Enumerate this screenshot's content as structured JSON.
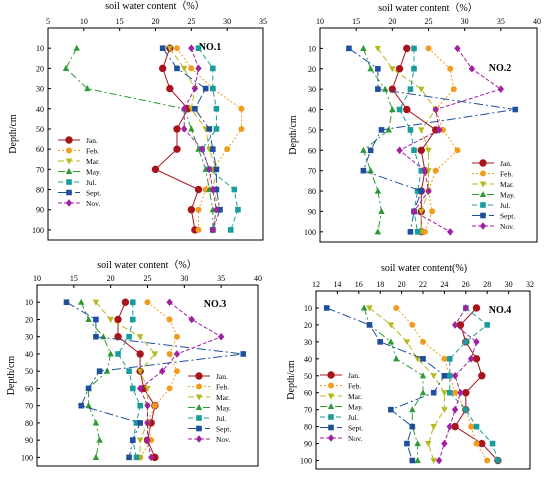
{
  "chart_data": [
    {
      "panel": "NO.1",
      "type": "line",
      "xlabel": "soil water content（%）",
      "ylabel": "Depth/cm",
      "xlim": [
        5,
        35
      ],
      "ylim": [
        0,
        105
      ],
      "x_ticks": [
        5,
        10,
        15,
        20,
        25,
        30,
        35
      ],
      "y_ticks": [
        10,
        20,
        30,
        40,
        50,
        60,
        70,
        80,
        90,
        100
      ],
      "legend_position": "bottom-left",
      "depths": [
        10,
        20,
        30,
        40,
        50,
        60,
        70,
        80,
        90,
        100
      ],
      "series": [
        {
          "name": "Jan.",
          "values": [
            22,
            21,
            22,
            24.5,
            23,
            23,
            20,
            26,
            25,
            25.5
          ]
        },
        {
          "name": "Feb.",
          "values": [
            23,
            25,
            28,
            32,
            32,
            30,
            28,
            27,
            26,
            26
          ]
        },
        {
          "name": "Mar.",
          "values": [
            22,
            24,
            25.5,
            25,
            27,
            27.5,
            28.5,
            28,
            29,
            28
          ]
        },
        {
          "name": "May.",
          "values": [
            9,
            7.5,
            10.5,
            24,
            25,
            26,
            27,
            27.5,
            28,
            28
          ]
        },
        {
          "name": "Jul.",
          "values": [
            26,
            28,
            28,
            28.5,
            28.5,
            26.5,
            27.5,
            31,
            31.5,
            30.5
          ]
        },
        {
          "name": "Sept.",
          "values": [
            21,
            23,
            27,
            25.5,
            27.5,
            28,
            28.5,
            28.5,
            29,
            28
          ]
        },
        {
          "name": "Nov.",
          "values": [
            25,
            26,
            25.5,
            24,
            24,
            26.5,
            27.5,
            28,
            28.5,
            28
          ]
        }
      ],
      "colors": {
        "Jan.": "#a8141b",
        "Feb.": "#f39b1f",
        "Mar.": "#b6b81e",
        "May.": "#2e9a35",
        "Jul.": "#1a9c9c",
        "Sept.": "#1f4f9a",
        "Nov.": "#a0229e"
      }
    },
    {
      "panel": "NO.2",
      "type": "line",
      "xlabel": "soil water content（%）",
      "ylabel": "Depth/cm",
      "xlim": [
        10,
        40
      ],
      "ylim": [
        0,
        105
      ],
      "x_ticks": [
        10,
        15,
        20,
        25,
        30,
        35,
        40
      ],
      "y_ticks": [
        10,
        20,
        30,
        40,
        50,
        60,
        70,
        80,
        90,
        100
      ],
      "legend_position": "bottom-right",
      "depths": [
        10,
        20,
        30,
        40,
        50,
        60,
        70,
        80,
        90,
        100
      ],
      "series": [
        {
          "name": "Jan.",
          "values": [
            22,
            21,
            20,
            22,
            26,
            24,
            24.5,
            24,
            24,
            24
          ]
        },
        {
          "name": "Feb.",
          "values": [
            25,
            28,
            28.5,
            26,
            27,
            29,
            26,
            25,
            25.5,
            24.5
          ]
        },
        {
          "name": "Mar.",
          "values": [
            18,
            20,
            24,
            26,
            24,
            25,
            25,
            25,
            24,
            24
          ]
        },
        {
          "name": "May.",
          "values": [
            16,
            17,
            19,
            20,
            19.5,
            16,
            17,
            18,
            18.5,
            18
          ]
        },
        {
          "name": "Jul.",
          "values": [
            23,
            23,
            22.5,
            21,
            22.5,
            23,
            24,
            23.5,
            23,
            23.5
          ]
        },
        {
          "name": "Sept.",
          "values": [
            14,
            18,
            18,
            37,
            18.5,
            17,
            16,
            24,
            23,
            22.5
          ]
        },
        {
          "name": "Nov.",
          "values": [
            29,
            31,
            35,
            26,
            26.5,
            21,
            24.5,
            25,
            23,
            28
          ]
        }
      ],
      "colors": {
        "Jan.": "#a8141b",
        "Feb.": "#f39b1f",
        "Mar.": "#b6b81e",
        "May.": "#2e9a35",
        "Jul.": "#1a9c9c",
        "Sept.": "#1f4f9a",
        "Nov.": "#a0229e"
      }
    },
    {
      "panel": "NO.3",
      "type": "line",
      "xlabel": "soil water content（%）",
      "ylabel": "Depth/cm",
      "xlim": [
        10,
        40
      ],
      "ylim": [
        0,
        105
      ],
      "x_ticks": [
        10,
        15,
        20,
        25,
        30,
        35,
        40
      ],
      "y_ticks": [
        10,
        20,
        30,
        40,
        50,
        60,
        70,
        80,
        90,
        100
      ],
      "legend_position": "bottom-right",
      "depths": [
        10,
        20,
        30,
        40,
        50,
        60,
        70,
        80,
        90,
        100
      ],
      "series": [
        {
          "name": "Jan.",
          "values": [
            22,
            21,
            21,
            24,
            24,
            24.5,
            26,
            25.5,
            25,
            26
          ]
        },
        {
          "name": "Feb.",
          "values": [
            25,
            28,
            29,
            28,
            29,
            28,
            26,
            25,
            25.5,
            24
          ]
        },
        {
          "name": "Mar.",
          "values": [
            18,
            20,
            24,
            26,
            24,
            25,
            25,
            25,
            24,
            24
          ]
        },
        {
          "name": "May.",
          "values": [
            16,
            17,
            19,
            20,
            19.5,
            17,
            17,
            18,
            18.5,
            18
          ]
        },
        {
          "name": "Jul.",
          "values": [
            23,
            23,
            22.5,
            21,
            22.5,
            23,
            24,
            23.5,
            23,
            23.5
          ]
        },
        {
          "name": "Sept.",
          "values": [
            14,
            18,
            18,
            38,
            18.5,
            17,
            16,
            24,
            23,
            22.5
          ]
        },
        {
          "name": "Nov.",
          "values": [
            28,
            31,
            35,
            29,
            27,
            24,
            25,
            25,
            25,
            25.5
          ]
        }
      ],
      "colors": {
        "Jan.": "#a8141b",
        "Feb.": "#f39b1f",
        "Mar.": "#b6b81e",
        "May.": "#2e9a35",
        "Jul.": "#1a9c9c",
        "Sept.": "#1f4f9a",
        "Nov.": "#a0229e"
      }
    },
    {
      "panel": "NO.4",
      "type": "line",
      "xlabel": "soil water content(%)",
      "ylabel": "Depth/cm",
      "xlim": [
        12,
        32
      ],
      "ylim": [
        0,
        105
      ],
      "x_ticks": [
        12,
        14,
        16,
        18,
        20,
        22,
        24,
        26,
        28,
        30,
        32
      ],
      "y_ticks": [
        10,
        20,
        30,
        40,
        50,
        60,
        70,
        80,
        90,
        100
      ],
      "legend_position": "bottom-left",
      "depths": [
        10,
        20,
        30,
        40,
        50,
        60,
        70,
        80,
        90,
        100
      ],
      "series": [
        {
          "name": "Jan.",
          "values": [
            27,
            25.5,
            26,
            27,
            27.5,
            26,
            26,
            25,
            27.5,
            29
          ]
        },
        {
          "name": "Feb.",
          "values": [
            19.5,
            21,
            22,
            24,
            24.5,
            25,
            26,
            26.5,
            27,
            28
          ]
        },
        {
          "name": "Mar.",
          "values": [
            17,
            19,
            20.5,
            21.5,
            23,
            24,
            24,
            23,
            22.5,
            23
          ]
        },
        {
          "name": "May.",
          "values": [
            16.5,
            17,
            19,
            19.5,
            22,
            22,
            21,
            21,
            21.5,
            21.5
          ]
        },
        {
          "name": "Jul.",
          "values": [
            26,
            28,
            26,
            24.5,
            24.5,
            24.5,
            26,
            27,
            28.5,
            29
          ]
        },
        {
          "name": "Sept.",
          "values": [
            13,
            17,
            18,
            22,
            24,
            23,
            19,
            21,
            20.5,
            21
          ]
        },
        {
          "name": "Nov.",
          "values": [
            26,
            25,
            27,
            26.5,
            25,
            25.5,
            25,
            24.5,
            24,
            23.5
          ]
        }
      ],
      "colors": {
        "Jan.": "#a8141b",
        "Feb.": "#f39b1f",
        "Mar.": "#b6b81e",
        "May.": "#2e9a35",
        "Jul.": "#1a9c9c",
        "Sept.": "#1f4f9a",
        "Nov.": "#a0229e"
      }
    }
  ]
}
